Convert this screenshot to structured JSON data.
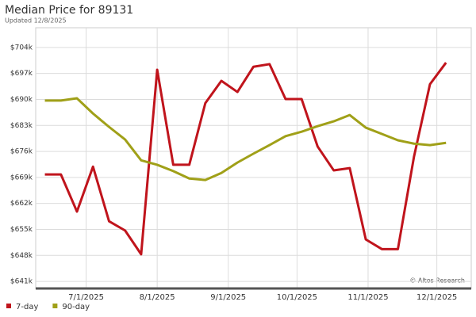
{
  "chart_data": {
    "type": "line",
    "title": "Median Price for 89131",
    "subtitle": "Updated 12/8/2025",
    "annotation": "© Altos Research",
    "x": [
      "2025-06-13",
      "2025-06-20",
      "2025-06-27",
      "2025-07-04",
      "2025-07-11",
      "2025-07-18",
      "2025-07-25",
      "2025-08-01",
      "2025-08-08",
      "2025-08-15",
      "2025-08-22",
      "2025-08-29",
      "2025-09-05",
      "2025-09-12",
      "2025-09-19",
      "2025-09-26",
      "2025-10-03",
      "2025-10-10",
      "2025-10-17",
      "2025-10-24",
      "2025-10-31",
      "2025-11-07",
      "2025-11-14",
      "2025-11-21",
      "2025-11-28",
      "2025-12-05"
    ],
    "series": [
      {
        "name": "7-day",
        "color": "#c0141c",
        "values": [
          669800,
          669800,
          659800,
          671900,
          657200,
          654700,
          648300,
          698000,
          672400,
          672400,
          689000,
          695000,
          692000,
          698800,
          699500,
          690100,
          690100,
          677300,
          670900,
          671500,
          652300,
          649700,
          649700,
          674500,
          694100,
          699900
        ]
      },
      {
        "name": "90-day",
        "color": "#a0a018",
        "values": [
          689700,
          689700,
          690300,
          686200,
          682600,
          679200,
          673600,
          672400,
          670700,
          668700,
          668300,
          670200,
          673000,
          675400,
          677700,
          680100,
          681300,
          682800,
          684100,
          685800,
          682400,
          680700,
          679000,
          678100,
          677700,
          678300
        ]
      }
    ],
    "xlim": [
      "2025-06-09",
      "2025-12-16"
    ],
    "xticks": [
      {
        "value": "2025-07-01",
        "label": "7/1/2025"
      },
      {
        "value": "2025-08-01",
        "label": "8/1/2025"
      },
      {
        "value": "2025-09-01",
        "label": "9/1/2025"
      },
      {
        "value": "2025-10-01",
        "label": "10/1/2025"
      },
      {
        "value": "2025-11-01",
        "label": "11/1/2025"
      },
      {
        "value": "2025-12-01",
        "label": "12/1/2025"
      }
    ],
    "ylim": [
      639100,
      709300
    ],
    "yticks": [
      {
        "value": 641000,
        "label": "$641k"
      },
      {
        "value": 648000,
        "label": "$648k"
      },
      {
        "value": 655000,
        "label": "$655k"
      },
      {
        "value": 662000,
        "label": "$662k"
      },
      {
        "value": 669000,
        "label": "$669k"
      },
      {
        "value": 676000,
        "label": "$676k"
      },
      {
        "value": 683000,
        "label": "$683k"
      },
      {
        "value": 690000,
        "label": "$690k"
      },
      {
        "value": 697000,
        "label": "$697k"
      },
      {
        "value": 704000,
        "label": "$704k"
      }
    ],
    "grid": true,
    "legend": "bottom-left"
  }
}
